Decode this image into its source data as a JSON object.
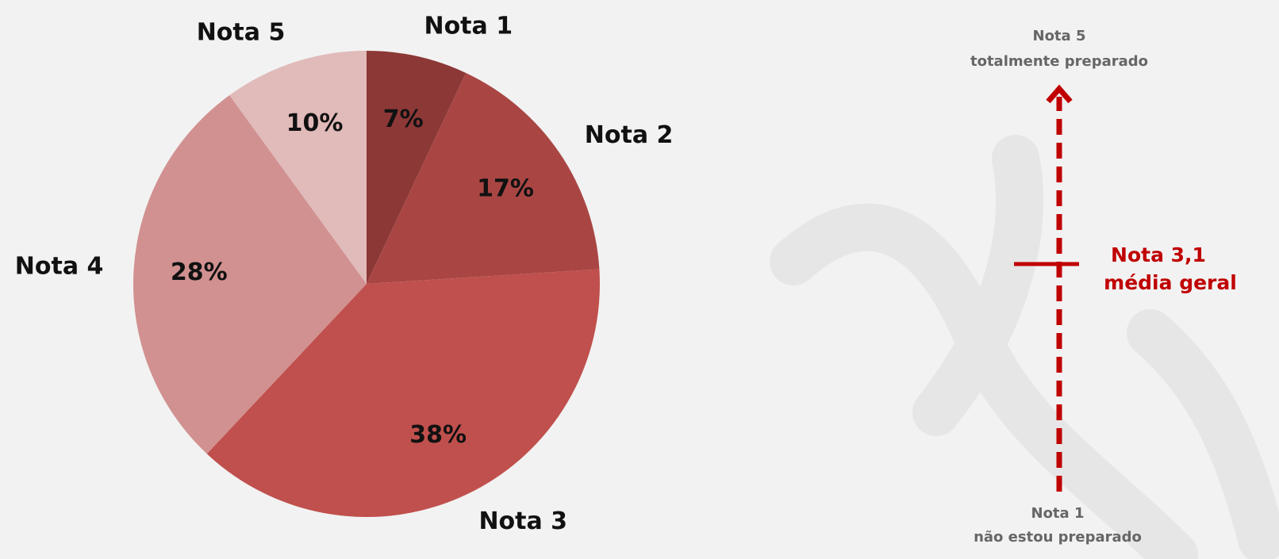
{
  "chart_data": {
    "type": "pie",
    "categories": [
      "Nota 1",
      "Nota 2",
      "Nota 3",
      "Nota 4",
      "Nota 5"
    ],
    "values": [
      7,
      17,
      38,
      28,
      10
    ],
    "value_labels": [
      "7%",
      "17%",
      "38%",
      "28%",
      "10%"
    ],
    "colors": [
      "#8c3836",
      "#a94644",
      "#c0504d",
      "#d19190",
      "#e1baba"
    ],
    "annotations": [
      "Nota 5",
      "totalmente preparado",
      "Nota 3,1",
      "média geral",
      "Nota 1",
      "não estou preparado"
    ]
  }
}
